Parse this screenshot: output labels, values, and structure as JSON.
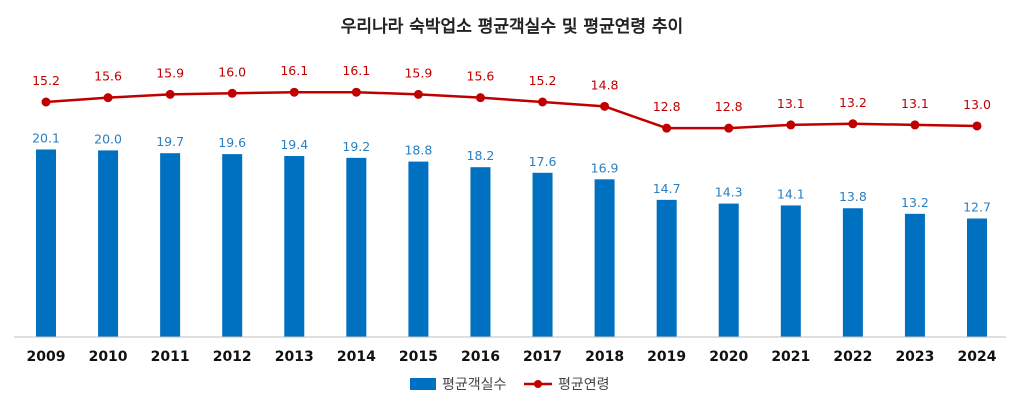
{
  "chart_data": {
    "type": "bar",
    "title": "우리나라 숙박업소 평균객실수 및 평균연령 추이",
    "categories": [
      "2009",
      "2010",
      "2011",
      "2012",
      "2013",
      "2014",
      "2015",
      "2016",
      "2017",
      "2018",
      "2019",
      "2020",
      "2021",
      "2022",
      "2023",
      "2024"
    ],
    "series": [
      {
        "name": "평균객실수",
        "type": "bar",
        "color": "#0070c0",
        "label_color": "#2a7fc0",
        "values": [
          20.1,
          20.0,
          19.7,
          19.6,
          19.4,
          19.2,
          18.8,
          18.2,
          17.6,
          16.9,
          14.7,
          14.3,
          14.1,
          13.8,
          13.2,
          12.7
        ]
      },
      {
        "name": "평균연령",
        "type": "line",
        "color": "#c00000",
        "values": [
          15.2,
          15.6,
          15.9,
          16.0,
          16.1,
          16.1,
          15.9,
          15.6,
          15.2,
          14.8,
          12.8,
          12.8,
          13.1,
          13.2,
          13.1,
          13.0
        ]
      }
    ],
    "legend_position": "bottom",
    "grid": false
  }
}
